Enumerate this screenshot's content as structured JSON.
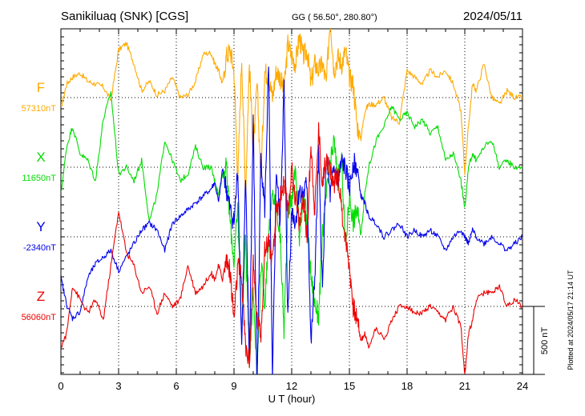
{
  "header": {
    "station": "Sanikiluaq (SNK)  [CGS]",
    "coords": "GG ( 56.50°, 280.80°)",
    "date": "2024/05/11"
  },
  "side_note": "Plotted at 2024/05/17 21:14 UT",
  "scale_label": "500 nT",
  "chart_data": {
    "type": "line",
    "xlabel": "U T (hour)",
    "xlim": [
      0,
      24
    ],
    "x_ticks": [
      0,
      3,
      6,
      9,
      12,
      15,
      18,
      21,
      24
    ],
    "grid": true,
    "series": [
      {
        "name": "F",
        "baseline": "57310nT",
        "color": "#ffaa00",
        "x": [
          0,
          0.3,
          0.6,
          1.0,
          1.4,
          1.8,
          2.2,
          2.6,
          3.0,
          3.4,
          3.8,
          4.2,
          4.6,
          5.0,
          5.4,
          5.8,
          6.2,
          6.6,
          7.0,
          7.4,
          7.8,
          8.0,
          8.2,
          8.4,
          8.6,
          8.8,
          9.0,
          9.2,
          9.4,
          9.6,
          9.8,
          10.0,
          10.2,
          10.4,
          10.6,
          10.8,
          11.0,
          11.2,
          11.4,
          11.6,
          11.8,
          12.0,
          12.2,
          12.4,
          12.6,
          12.8,
          13.0,
          13.2,
          13.4,
          13.6,
          13.8,
          14.0,
          14.2,
          14.4,
          14.6,
          14.8,
          15.0,
          15.2,
          15.4,
          15.6,
          15.8,
          16.0,
          16.4,
          16.8,
          17.2,
          17.6,
          18.0,
          18.4,
          18.8,
          19.2,
          19.6,
          20.0,
          20.4,
          20.8,
          21.0,
          21.2,
          21.4,
          21.6,
          22.0,
          22.4,
          22.8,
          23.2,
          23.6,
          24.0
        ],
        "y": [
          -80,
          100,
          150,
          180,
          120,
          100,
          80,
          -20,
          350,
          400,
          250,
          50,
          120,
          20,
          50,
          150,
          0,
          20,
          120,
          320,
          330,
          250,
          200,
          100,
          300,
          350,
          200,
          -600,
          300,
          -700,
          250,
          -400,
          100,
          -600,
          200,
          150,
          0,
          200,
          150,
          50,
          400,
          300,
          250,
          450,
          300,
          350,
          100,
          250,
          200,
          250,
          100,
          600,
          200,
          300,
          250,
          350,
          150,
          100,
          -200,
          -300,
          -100,
          -50,
          -50,
          0,
          -150,
          -180,
          200,
          150,
          100,
          200,
          150,
          200,
          100,
          -100,
          -550,
          -200,
          100,
          50,
          250,
          0,
          -50,
          50,
          0,
          0
        ]
      },
      {
        "name": "X",
        "baseline": "11650nT",
        "color": "#00dd00",
        "x": [
          0,
          0.3,
          0.6,
          1.0,
          1.4,
          1.8,
          2.2,
          2.6,
          3.0,
          3.4,
          3.8,
          4.2,
          4.6,
          5.0,
          5.4,
          5.8,
          6.2,
          6.6,
          7.0,
          7.4,
          7.8,
          8.0,
          8.2,
          8.4,
          8.6,
          8.8,
          9.0,
          9.2,
          9.4,
          9.6,
          9.8,
          10.0,
          10.2,
          10.4,
          10.6,
          10.8,
          11.0,
          11.2,
          11.4,
          11.6,
          11.8,
          12.0,
          12.2,
          12.4,
          12.6,
          12.8,
          13.0,
          13.2,
          13.4,
          13.6,
          13.8,
          14.0,
          14.2,
          14.4,
          14.6,
          14.8,
          15.0,
          15.2,
          15.4,
          15.6,
          15.8,
          16.0,
          16.4,
          16.8,
          17.2,
          17.6,
          18.0,
          18.4,
          18.8,
          19.2,
          19.6,
          20.0,
          20.4,
          20.8,
          21.0,
          21.2,
          21.4,
          21.6,
          22.0,
          22.4,
          22.8,
          23.2,
          23.6,
          24.0
        ],
        "y": [
          -200,
          150,
          300,
          100,
          50,
          -100,
          350,
          550,
          -50,
          0,
          -100,
          50,
          -400,
          -200,
          200,
          50,
          -100,
          -50,
          150,
          0,
          0,
          -100,
          -200,
          -50,
          0,
          -400,
          -700,
          -300,
          -1200,
          -500,
          -1400,
          -900,
          -1500,
          -700,
          -1000,
          -500,
          -200,
          -300,
          -500,
          -1200,
          -300,
          -250,
          0,
          -500,
          -200,
          -400,
          -800,
          -1000,
          -1100,
          -500,
          -200,
          0,
          200,
          -100,
          50,
          -600,
          -200,
          -400,
          -300,
          -500,
          -200,
          0,
          200,
          300,
          450,
          350,
          400,
          300,
          350,
          250,
          300,
          50,
          100,
          -100,
          -300,
          0,
          100,
          50,
          150,
          200,
          0,
          50,
          0,
          0
        ]
      },
      {
        "name": "Y",
        "baseline": "-2340nT",
        "color": "#0000ee",
        "x": [
          0,
          0.3,
          0.6,
          1.0,
          1.4,
          1.8,
          2.2,
          2.6,
          3.0,
          3.4,
          3.8,
          4.2,
          4.6,
          5.0,
          5.4,
          5.8,
          6.2,
          6.6,
          7.0,
          7.4,
          7.8,
          8.0,
          8.2,
          8.4,
          8.6,
          8.8,
          9.0,
          9.2,
          9.4,
          9.6,
          9.8,
          10.0,
          10.2,
          10.4,
          10.6,
          10.8,
          11.0,
          11.2,
          11.4,
          11.6,
          11.8,
          12.0,
          12.2,
          12.4,
          12.6,
          12.8,
          13.0,
          13.2,
          13.4,
          13.6,
          13.8,
          14.0,
          14.2,
          14.4,
          14.6,
          14.8,
          15.0,
          15.2,
          15.4,
          15.6,
          15.8,
          16.0,
          16.4,
          16.8,
          17.2,
          17.6,
          18.0,
          18.4,
          18.8,
          19.2,
          19.6,
          20.0,
          20.4,
          20.8,
          21.0,
          21.2,
          21.4,
          21.6,
          22.0,
          22.4,
          22.8,
          23.2,
          23.6,
          24.0
        ],
        "y": [
          -300,
          -500,
          -600,
          -550,
          -300,
          -200,
          -150,
          -100,
          -250,
          -150,
          -50,
          50,
          100,
          50,
          -100,
          100,
          150,
          200,
          250,
          300,
          350,
          400,
          250,
          500,
          350,
          200,
          100,
          500,
          -800,
          400,
          -900,
          850,
          -1100,
          600,
          200,
          1250,
          -1100,
          500,
          100,
          1100,
          -600,
          200,
          100,
          350,
          300,
          400,
          -800,
          -300,
          600,
          -400,
          600,
          300,
          500,
          400,
          550,
          500,
          350,
          550,
          500,
          300,
          250,
          150,
          100,
          0,
          50,
          100,
          0,
          50,
          0,
          50,
          0,
          -100,
          0,
          50,
          0,
          -50,
          50,
          0,
          -50,
          0,
          -50,
          -100,
          -50,
          0
        ]
      },
      {
        "name": "Z",
        "baseline": "56060nT",
        "color": "#ee0000",
        "x": [
          0,
          0.3,
          0.6,
          1.0,
          1.4,
          1.8,
          2.2,
          2.6,
          3.0,
          3.4,
          3.8,
          4.2,
          4.6,
          5.0,
          5.4,
          5.8,
          6.2,
          6.6,
          7.0,
          7.4,
          7.8,
          8.0,
          8.2,
          8.4,
          8.6,
          8.8,
          9.0,
          9.2,
          9.4,
          9.6,
          9.8,
          10.0,
          10.2,
          10.4,
          10.6,
          10.8,
          11.0,
          11.2,
          11.4,
          11.6,
          11.8,
          12.0,
          12.2,
          12.4,
          12.6,
          12.8,
          13.0,
          13.2,
          13.4,
          13.6,
          13.8,
          14.0,
          14.2,
          14.4,
          14.6,
          14.8,
          15.0,
          15.2,
          15.4,
          15.6,
          15.8,
          16.0,
          16.4,
          16.8,
          17.2,
          17.6,
          18.0,
          18.4,
          18.8,
          19.2,
          19.6,
          20.0,
          20.4,
          20.8,
          21.0,
          21.2,
          21.4,
          21.6,
          22.0,
          22.4,
          22.8,
          23.2,
          23.6,
          24.0
        ],
        "y": [
          -300,
          -200,
          150,
          50,
          -50,
          50,
          -100,
          300,
          700,
          400,
          300,
          100,
          150,
          -50,
          100,
          0,
          50,
          300,
          100,
          150,
          250,
          200,
          300,
          200,
          350,
          250,
          -100,
          300,
          200,
          -300,
          -400,
          300,
          -100,
          -200,
          400,
          500,
          300,
          700,
          800,
          900,
          700,
          1000,
          800,
          600,
          800,
          500,
          1200,
          700,
          1300,
          900,
          1100,
          1000,
          900,
          1000,
          700,
          500,
          300,
          0,
          -100,
          -250,
          -200,
          -300,
          -150,
          -250,
          -100,
          0,
          0,
          -50,
          -50,
          0,
          -50,
          -100,
          0,
          -150,
          -500,
          -200,
          -100,
          50,
          100,
          100,
          150,
          0,
          50,
          0
        ]
      }
    ]
  }
}
